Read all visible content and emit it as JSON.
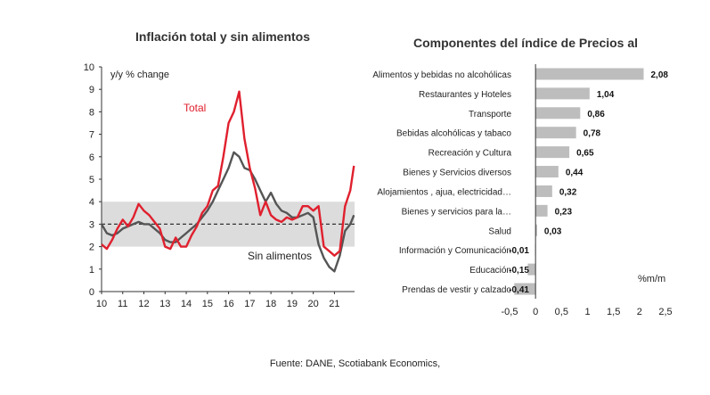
{
  "source": "Fuente:  DANE, Scotiabank Economics,",
  "chart_data": [
    {
      "type": "line",
      "title": "Inflación total y sin alimentos",
      "ylabel": "y/y % change",
      "ylim": [
        0,
        10
      ],
      "yticks": [
        "0",
        "1",
        "2",
        "3",
        "4",
        "5",
        "6",
        "7",
        "8",
        "9",
        "10"
      ],
      "xlim": [
        2010,
        2021.95
      ],
      "xticks": [
        "10",
        "11",
        "12",
        "13",
        "14",
        "15",
        "16",
        "17",
        "18",
        "19",
        "20",
        "21"
      ],
      "band": [
        2,
        4
      ],
      "target": 3,
      "colors": {
        "total": "#e0202e",
        "core": "#555555",
        "band": "#dcdcdc"
      },
      "series": [
        {
          "name": "Total",
          "x": [
            2010.0,
            2010.25,
            2010.5,
            2010.75,
            2011.0,
            2011.25,
            2011.5,
            2011.75,
            2012.0,
            2012.25,
            2012.5,
            2012.75,
            2013.0,
            2013.25,
            2013.5,
            2013.75,
            2014.0,
            2014.25,
            2014.5,
            2014.75,
            2015.0,
            2015.25,
            2015.5,
            2015.75,
            2016.0,
            2016.25,
            2016.5,
            2016.75,
            2017.0,
            2017.25,
            2017.5,
            2017.75,
            2018.0,
            2018.25,
            2018.5,
            2018.75,
            2019.0,
            2019.25,
            2019.5,
            2019.75,
            2020.0,
            2020.25,
            2020.5,
            2020.75,
            2021.0,
            2021.25,
            2021.5,
            2021.75,
            2021.92
          ],
          "y": [
            2.1,
            1.9,
            2.3,
            2.8,
            3.2,
            2.9,
            3.3,
            3.9,
            3.6,
            3.4,
            3.1,
            2.8,
            2.0,
            1.9,
            2.4,
            2.0,
            2.0,
            2.5,
            2.9,
            3.5,
            3.8,
            4.5,
            4.7,
            6.0,
            7.5,
            8.0,
            8.9,
            6.8,
            5.5,
            4.6,
            3.4,
            4.0,
            3.4,
            3.2,
            3.1,
            3.3,
            3.2,
            3.3,
            3.8,
            3.8,
            3.6,
            3.8,
            2.0,
            1.8,
            1.6,
            1.8,
            3.8,
            4.5,
            5.6
          ]
        },
        {
          "name": "Sin alimentos",
          "x": [
            2010.0,
            2010.25,
            2010.5,
            2010.75,
            2011.0,
            2011.25,
            2011.5,
            2011.75,
            2012.0,
            2012.25,
            2012.5,
            2012.75,
            2013.0,
            2013.25,
            2013.5,
            2013.75,
            2014.0,
            2014.25,
            2014.5,
            2014.75,
            2015.0,
            2015.25,
            2015.5,
            2015.75,
            2016.0,
            2016.25,
            2016.5,
            2016.75,
            2017.0,
            2017.25,
            2017.5,
            2017.75,
            2018.0,
            2018.25,
            2018.5,
            2018.75,
            2019.0,
            2019.25,
            2019.5,
            2019.75,
            2020.0,
            2020.25,
            2020.5,
            2020.75,
            2021.0,
            2021.25,
            2021.5,
            2021.75,
            2021.92
          ],
          "y": [
            3.0,
            2.6,
            2.5,
            2.6,
            2.8,
            2.9,
            3.0,
            3.1,
            3.0,
            3.0,
            2.8,
            2.6,
            2.3,
            2.2,
            2.2,
            2.4,
            2.6,
            2.8,
            3.0,
            3.3,
            3.6,
            4.0,
            4.5,
            5.0,
            5.5,
            6.2,
            6.0,
            5.5,
            5.4,
            5.0,
            4.5,
            4.0,
            4.4,
            3.9,
            3.6,
            3.5,
            3.3,
            3.3,
            3.4,
            3.5,
            3.3,
            2.1,
            1.5,
            1.1,
            0.9,
            1.6,
            2.7,
            3.0,
            3.4
          ]
        }
      ],
      "annotations": [
        "Total",
        "Sin alimentos"
      ]
    },
    {
      "type": "bar",
      "orientation": "horizontal",
      "title": "Componentes del índice de Precios al",
      "unit_note": "%m/m",
      "xlim": [
        -0.5,
        2.5
      ],
      "xticks": [
        "-0,5",
        "0",
        "0,5",
        "1",
        "1,5",
        "2",
        "2,5"
      ],
      "bar_color": "#bdbdbd",
      "categories": [
        "Alimentos y bebidas no alcohólicas",
        "Restaurantes y Hoteles",
        "Transporte",
        "Bebidas alcohólicas y tabaco",
        "Recreación y Cultura",
        "Bienes y Servicios diversos",
        "Alojamientos , ajua, electricidad…",
        "Bienes y servicios para la…",
        "Salud",
        "Información y Comunicación",
        "Educación",
        "Prendas de vestir y calzado"
      ],
      "values": [
        2.08,
        1.04,
        0.86,
        0.78,
        0.65,
        0.44,
        0.32,
        0.23,
        0.03,
        -0.01,
        -0.15,
        -0.41
      ],
      "value_labels": [
        "2,08",
        "1,04",
        "0,86",
        "0,78",
        "0,65",
        "0,44",
        "0,32",
        "0,23",
        "0,03",
        "-0,01",
        "-0,15",
        "-0,41"
      ]
    }
  ]
}
